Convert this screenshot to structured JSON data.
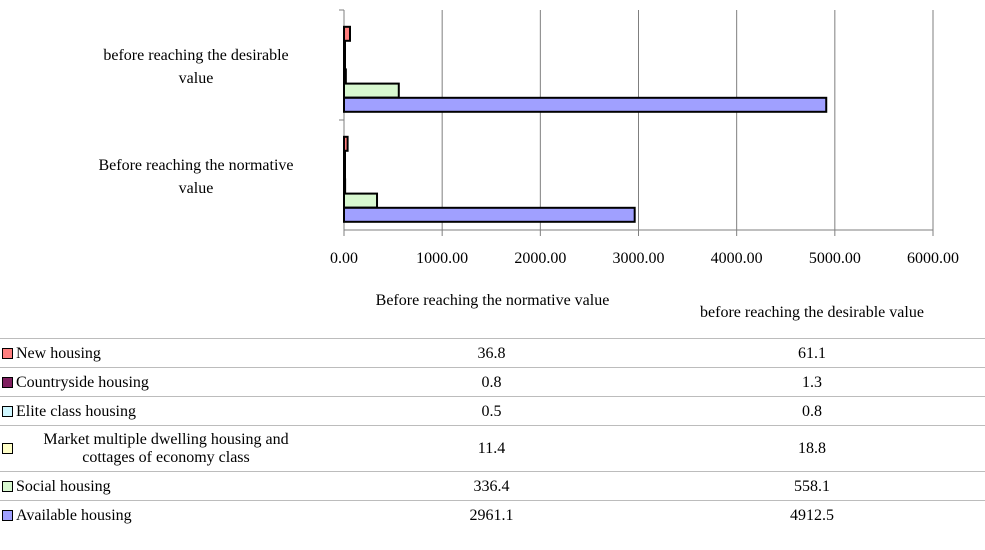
{
  "chart_data": {
    "type": "bar",
    "orientation": "horizontal",
    "categories": [
      "before reaching the desirable value",
      "Before reaching the normative value"
    ],
    "series": [
      {
        "name": "New housing",
        "color": "#ff7f7f",
        "values": [
          61.1,
          36.8
        ]
      },
      {
        "name": "Countryside housing",
        "color": "#7f1f5f",
        "values": [
          1.3,
          0.8
        ]
      },
      {
        "name": "Elite class housing",
        "color": "#cff7ff",
        "values": [
          0.8,
          0.5
        ]
      },
      {
        "name": "Market multiple dwelling housing and cottages of economy class",
        "color": "#ffffc8",
        "values": [
          18.8,
          11.4
        ]
      },
      {
        "name": "Social housing",
        "color": "#d8f8d0",
        "values": [
          558.1,
          336.4
        ]
      },
      {
        "name": "Available housing",
        "color": "#a0a0ff",
        "values": [
          4912.5,
          2961.1
        ]
      }
    ],
    "xlim": [
      0,
      6000
    ],
    "xticks": [
      "0.00",
      "1000.00",
      "2000.00",
      "3000.00",
      "4000.00",
      "5000.00",
      "6000.00"
    ],
    "grid": true,
    "data_table": {
      "columns": [
        "Before reaching the normative value",
        "before reaching the desirable value"
      ],
      "rows": [
        {
          "label": "New housing",
          "values": [
            "36.8",
            "61.1"
          ]
        },
        {
          "label": "Countryside housing",
          "values": [
            "0.8",
            "1.3"
          ]
        },
        {
          "label": "Elite class housing",
          "values": [
            "0.5",
            "0.8"
          ]
        },
        {
          "label": "Market multiple dwelling housing and cottages of economy class",
          "values": [
            "11.4",
            "18.8"
          ]
        },
        {
          "label": "Social housing",
          "values": [
            "336.4",
            "558.1"
          ]
        },
        {
          "label": "Available housing",
          "values": [
            "2961.1",
            "4912.5"
          ]
        }
      ]
    }
  }
}
